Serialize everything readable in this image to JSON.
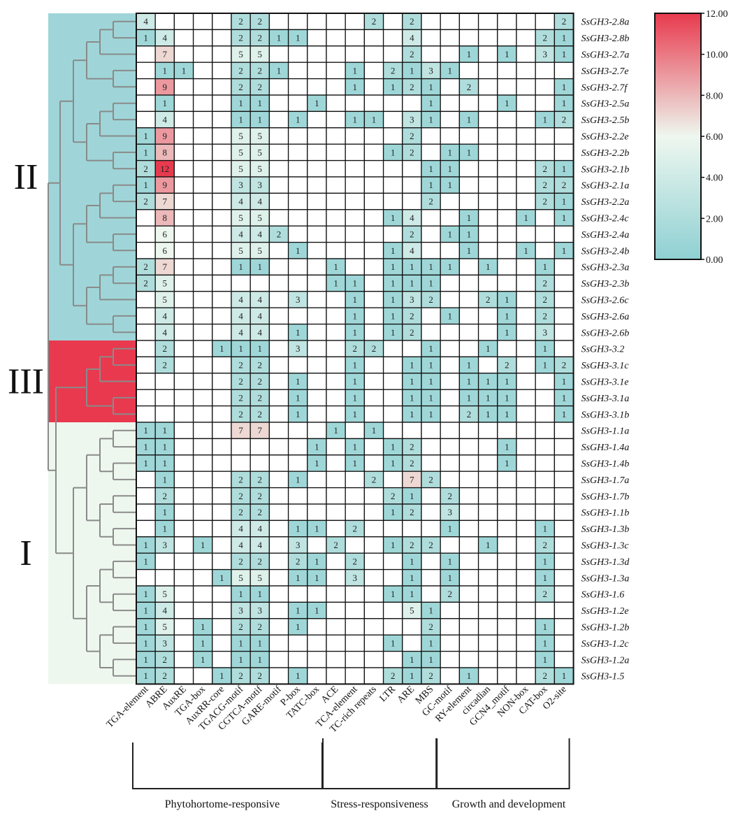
{
  "chart_data": {
    "type": "heatmap",
    "title": "",
    "columns": [
      "TGA-element",
      "ABRE",
      "AuxRE",
      "TGA-box",
      "AuxRR-core",
      "TGACG-motif",
      "CGTCA-motif",
      "GARE-motif",
      "P-box",
      "TATC-box",
      "ACE",
      "TCA-element",
      "TC-rich repeats",
      "LTR",
      "ARE",
      "MBS",
      "GC-motif",
      "RY-element",
      "circadian",
      "GCN4_motif",
      "NON-box",
      "CAT-box",
      "O2-site"
    ],
    "rows": [
      "SsGH3-2.8a",
      "SsGH3-2.8b",
      "SsGH3-2.7a",
      "SsGH3-2.7e",
      "SsGH3-2.7f",
      "SsGH3-2.5a",
      "SsGH3-2.5b",
      "SsGH3-2.2e",
      "SsGH3-2.2b",
      "SsGH3-2.1b",
      "SsGH3-2.1a",
      "SsGH3-2.2a",
      "SsGH3-2.4c",
      "SsGH3-2.4a",
      "SsGH3-2.4b",
      "SsGH3-2.3a",
      "SsGH3-2.3b",
      "SsGH3-2.6c",
      "SsGH3-2.6a",
      "SsGH3-2.6b",
      "SsGH3-3.2",
      "SsGH3-3.1c",
      "SsGH3-3.1e",
      "SsGH3-3.1a",
      "SsGH3-3.1b",
      "SsGH3-1.1a",
      "SsGH3-1.4a",
      "SsGH3-1.4b",
      "SsGH3-1.7a",
      "SsGH3-1.7b",
      "SsGH3-1.1b",
      "SsGH3-1.3b",
      "SsGH3-1.3c",
      "SsGH3-1.3d",
      "SsGH3-1.3a",
      "SsGH3-1.6",
      "SsGH3-1.2e",
      "SsGH3-1.2b",
      "SsGH3-1.2c",
      "SsGH3-1.2a",
      "SsGH3-1.5"
    ],
    "values": [
      [
        4,
        0,
        0,
        0,
        0,
        2,
        2,
        0,
        0,
        0,
        0,
        0,
        2,
        0,
        2,
        0,
        0,
        0,
        0,
        0,
        0,
        0,
        2
      ],
      [
        1,
        4,
        0,
        0,
        0,
        2,
        2,
        1,
        1,
        0,
        0,
        0,
        0,
        0,
        4,
        0,
        0,
        0,
        0,
        0,
        0,
        2,
        1
      ],
      [
        0,
        7,
        0,
        0,
        0,
        5,
        5,
        0,
        0,
        0,
        0,
        0,
        0,
        0,
        2,
        0,
        0,
        1,
        0,
        1,
        0,
        3,
        1
      ],
      [
        0,
        1,
        1,
        0,
        0,
        2,
        2,
        1,
        0,
        0,
        0,
        1,
        0,
        2,
        1,
        3,
        1,
        0,
        0,
        0,
        0,
        0,
        0
      ],
      [
        0,
        9,
        0,
        0,
        0,
        2,
        2,
        0,
        0,
        0,
        0,
        1,
        0,
        1,
        2,
        1,
        0,
        2,
        0,
        0,
        0,
        0,
        1
      ],
      [
        0,
        1,
        0,
        0,
        0,
        1,
        1,
        0,
        0,
        1,
        0,
        0,
        0,
        0,
        0,
        1,
        0,
        0,
        0,
        1,
        0,
        0,
        1
      ],
      [
        0,
        4,
        0,
        0,
        0,
        1,
        1,
        0,
        1,
        0,
        0,
        1,
        1,
        0,
        3,
        1,
        0,
        1,
        0,
        0,
        0,
        1,
        2
      ],
      [
        1,
        9,
        0,
        0,
        0,
        5,
        5,
        0,
        0,
        0,
        0,
        0,
        0,
        0,
        2,
        0,
        0,
        0,
        0,
        0,
        0,
        0,
        0
      ],
      [
        1,
        8,
        0,
        0,
        0,
        5,
        5,
        0,
        0,
        0,
        0,
        0,
        0,
        1,
        2,
        0,
        1,
        1,
        0,
        0,
        0,
        0,
        0
      ],
      [
        2,
        12,
        0,
        0,
        0,
        5,
        5,
        0,
        0,
        0,
        0,
        0,
        0,
        0,
        0,
        1,
        1,
        0,
        0,
        0,
        0,
        2,
        1
      ],
      [
        1,
        9,
        0,
        0,
        0,
        3,
        3,
        0,
        0,
        0,
        0,
        0,
        0,
        0,
        0,
        1,
        1,
        0,
        0,
        0,
        0,
        2,
        2
      ],
      [
        2,
        7,
        0,
        0,
        0,
        4,
        4,
        0,
        0,
        0,
        0,
        0,
        0,
        0,
        0,
        2,
        0,
        0,
        0,
        0,
        0,
        2,
        1
      ],
      [
        0,
        8,
        0,
        0,
        0,
        5,
        5,
        0,
        0,
        0,
        0,
        0,
        0,
        1,
        4,
        0,
        0,
        1,
        0,
        0,
        1,
        0,
        1
      ],
      [
        0,
        6,
        0,
        0,
        0,
        4,
        4,
        2,
        0,
        0,
        0,
        0,
        0,
        0,
        2,
        0,
        1,
        1,
        0,
        0,
        0,
        0,
        0
      ],
      [
        0,
        6,
        0,
        0,
        0,
        5,
        5,
        0,
        1,
        0,
        0,
        0,
        0,
        1,
        4,
        0,
        0,
        1,
        0,
        0,
        1,
        0,
        1
      ],
      [
        2,
        7,
        0,
        0,
        0,
        1,
        1,
        0,
        0,
        0,
        1,
        0,
        0,
        1,
        1,
        1,
        1,
        0,
        1,
        0,
        0,
        1,
        0
      ],
      [
        2,
        5,
        0,
        0,
        0,
        0,
        0,
        0,
        0,
        0,
        1,
        1,
        0,
        1,
        1,
        1,
        0,
        0,
        0,
        0,
        0,
        2,
        0
      ],
      [
        0,
        5,
        0,
        0,
        0,
        4,
        4,
        0,
        3,
        0,
        0,
        1,
        0,
        1,
        3,
        2,
        0,
        0,
        2,
        1,
        0,
        2,
        0
      ],
      [
        0,
        4,
        0,
        0,
        0,
        4,
        4,
        0,
        0,
        0,
        0,
        1,
        0,
        1,
        2,
        0,
        1,
        0,
        0,
        1,
        0,
        2,
        0
      ],
      [
        0,
        4,
        0,
        0,
        0,
        4,
        4,
        0,
        1,
        0,
        0,
        1,
        0,
        1,
        2,
        0,
        0,
        0,
        0,
        1,
        0,
        3,
        0
      ],
      [
        0,
        2,
        0,
        0,
        1,
        1,
        1,
        0,
        3,
        0,
        0,
        2,
        2,
        0,
        0,
        1,
        0,
        0,
        1,
        0,
        0,
        1,
        0
      ],
      [
        0,
        2,
        0,
        0,
        0,
        2,
        2,
        0,
        0,
        0,
        0,
        1,
        0,
        0,
        1,
        1,
        0,
        1,
        0,
        2,
        0,
        1,
        2
      ],
      [
        0,
        0,
        0,
        0,
        0,
        2,
        2,
        0,
        1,
        0,
        0,
        1,
        0,
        0,
        1,
        1,
        0,
        1,
        1,
        1,
        0,
        0,
        1
      ],
      [
        0,
        0,
        0,
        0,
        0,
        2,
        2,
        0,
        1,
        0,
        0,
        1,
        0,
        0,
        1,
        1,
        0,
        1,
        1,
        1,
        0,
        0,
        1
      ],
      [
        0,
        0,
        0,
        0,
        0,
        2,
        2,
        0,
        1,
        0,
        0,
        1,
        0,
        0,
        1,
        1,
        0,
        2,
        1,
        1,
        0,
        0,
        1
      ],
      [
        1,
        1,
        0,
        0,
        0,
        7,
        7,
        0,
        0,
        0,
        1,
        0,
        1,
        0,
        0,
        0,
        0,
        0,
        0,
        0,
        0,
        0,
        0
      ],
      [
        1,
        1,
        0,
        0,
        0,
        0,
        0,
        0,
        0,
        1,
        0,
        1,
        0,
        1,
        2,
        0,
        0,
        0,
        0,
        1,
        0,
        0,
        0
      ],
      [
        1,
        1,
        0,
        0,
        0,
        0,
        0,
        0,
        0,
        1,
        0,
        1,
        0,
        1,
        2,
        0,
        0,
        0,
        0,
        1,
        0,
        0,
        0
      ],
      [
        0,
        1,
        0,
        0,
        0,
        2,
        2,
        0,
        1,
        0,
        0,
        0,
        2,
        0,
        7,
        2,
        0,
        0,
        0,
        0,
        0,
        0,
        0
      ],
      [
        0,
        2,
        0,
        0,
        0,
        2,
        2,
        0,
        0,
        0,
        0,
        0,
        0,
        2,
        1,
        0,
        2,
        0,
        0,
        0,
        0,
        0,
        0
      ],
      [
        0,
        1,
        0,
        0,
        0,
        2,
        2,
        0,
        0,
        0,
        0,
        0,
        0,
        1,
        2,
        0,
        3,
        0,
        0,
        0,
        0,
        0,
        0
      ],
      [
        0,
        1,
        0,
        0,
        0,
        4,
        4,
        0,
        1,
        1,
        0,
        2,
        0,
        0,
        0,
        0,
        1,
        0,
        0,
        0,
        0,
        1,
        0
      ],
      [
        1,
        3,
        0,
        1,
        0,
        4,
        4,
        0,
        3,
        0,
        2,
        0,
        0,
        1,
        2,
        2,
        0,
        0,
        1,
        0,
        0,
        2,
        0
      ],
      [
        1,
        0,
        0,
        0,
        0,
        2,
        2,
        0,
        2,
        1,
        0,
        2,
        0,
        0,
        1,
        0,
        1,
        0,
        0,
        0,
        0,
        1,
        0
      ],
      [
        0,
        0,
        0,
        0,
        1,
        5,
        5,
        0,
        1,
        1,
        0,
        3,
        0,
        0,
        1,
        0,
        1,
        0,
        0,
        0,
        0,
        1,
        0
      ],
      [
        1,
        5,
        0,
        0,
        0,
        1,
        1,
        0,
        0,
        0,
        0,
        0,
        0,
        1,
        1,
        0,
        2,
        0,
        0,
        0,
        0,
        2,
        0
      ],
      [
        1,
        4,
        0,
        0,
        0,
        3,
        3,
        0,
        1,
        1,
        0,
        0,
        0,
        0,
        5,
        1,
        0,
        0,
        0,
        0,
        0,
        0,
        0
      ],
      [
        1,
        5,
        0,
        1,
        0,
        2,
        2,
        0,
        1,
        0,
        0,
        0,
        0,
        0,
        0,
        2,
        0,
        0,
        0,
        0,
        0,
        1,
        0
      ],
      [
        1,
        3,
        0,
        1,
        0,
        1,
        1,
        0,
        0,
        0,
        0,
        0,
        0,
        1,
        0,
        1,
        0,
        0,
        0,
        0,
        0,
        1,
        0
      ],
      [
        1,
        2,
        0,
        1,
        0,
        1,
        1,
        0,
        0,
        0,
        0,
        0,
        0,
        0,
        1,
        1,
        0,
        0,
        0,
        0,
        0,
        1,
        0
      ],
      [
        1,
        2,
        0,
        0,
        1,
        2,
        2,
        0,
        1,
        0,
        0,
        0,
        0,
        2,
        1,
        2,
        0,
        1,
        0,
        0,
        0,
        2,
        1
      ]
    ],
    "color_scale": {
      "min": 0,
      "max": 12,
      "ticks": [
        "12.00",
        "10.00",
        "8.00",
        "6.00",
        "4.00",
        "2.00",
        "0.00"
      ],
      "stops": [
        {
          "value": 0,
          "color": "#8fd0d3"
        },
        {
          "value": 6,
          "color": "#eef7ef"
        },
        {
          "value": 12,
          "color": "#e83a4e"
        }
      ],
      "zero_color": "#ffffff"
    },
    "clades": [
      {
        "label": "II",
        "start_row": 0,
        "end_row": 19,
        "color": "#9fd5d8"
      },
      {
        "label": "III",
        "start_row": 20,
        "end_row": 24,
        "color": "#e8394f"
      },
      {
        "label": "I",
        "start_row": 25,
        "end_row": 40,
        "color": "#eef7ee"
      }
    ],
    "column_groups": [
      {
        "label": "Phytohortome-responsive",
        "start_col": 0,
        "end_col": 9
      },
      {
        "label": "Stress-responsiveness",
        "start_col": 10,
        "end_col": 15
      },
      {
        "label": "Growth and development",
        "start_col": 16,
        "end_col": 22
      }
    ]
  }
}
